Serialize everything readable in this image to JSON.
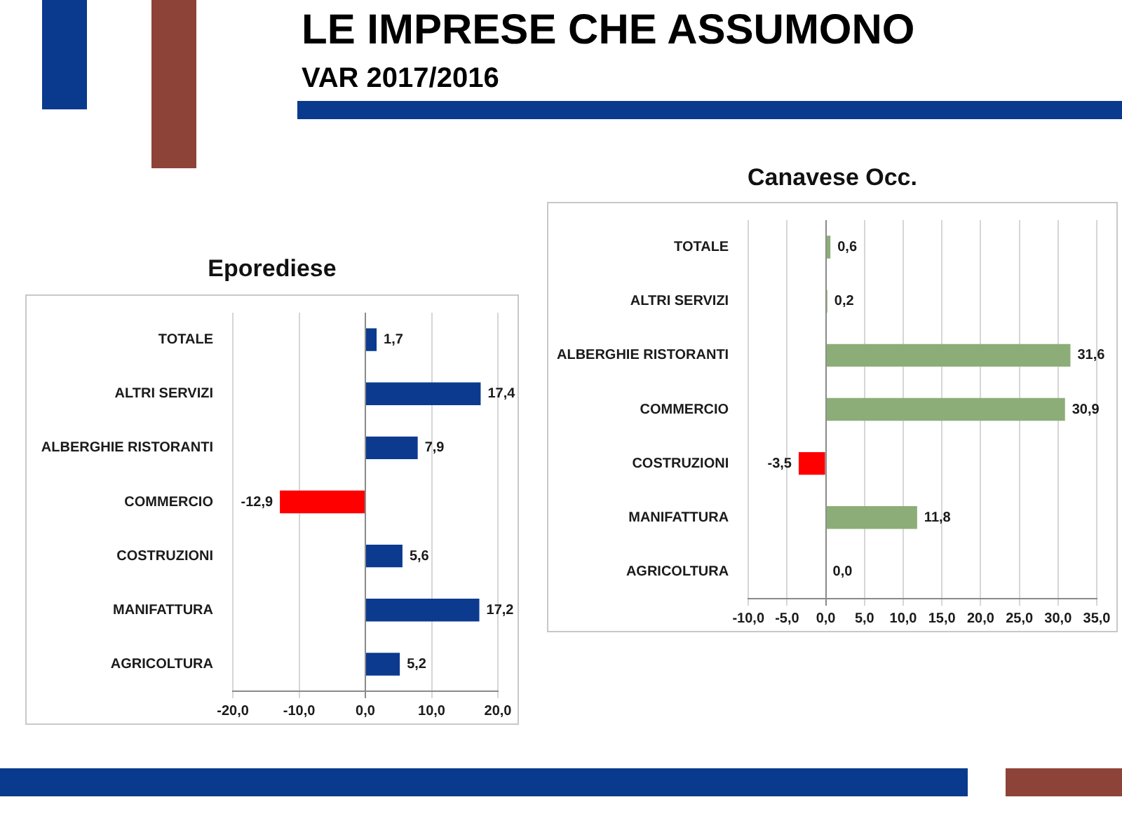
{
  "chart_data": [
    {
      "type": "other",
      "title": "LE IMPRESE CHE ASSUMONO",
      "subtitle": "VAR 2017/2016"
    },
    {
      "type": "bar",
      "title": "Eporediese",
      "orientation": "horizontal",
      "categories": [
        "TOTALE",
        "ALTRI SERVIZI",
        "ALBERGHIE RISTORANTI",
        "COMMERCIO",
        "COSTRUZIONI",
        "MANIFATTURA",
        "AGRICOLTURA"
      ],
      "values": [
        1.7,
        17.4,
        7.9,
        -12.9,
        5.6,
        17.2,
        5.2
      ],
      "colors": [
        "#0b3a8f",
        "#0b3a8f",
        "#0b3a8f",
        "#ff0000",
        "#0b3a8f",
        "#0b3a8f",
        "#0b3a8f"
      ],
      "value_labels": [
        "1,7",
        "17,4",
        "7,9",
        "-12,9",
        "5,6",
        "17,2",
        "5,2"
      ],
      "xlim": [
        -20,
        20
      ],
      "xticks": [
        {
          "value": -20,
          "label": "-20,0"
        },
        {
          "value": -10,
          "label": "-10,0"
        },
        {
          "value": 0,
          "label": "0,0"
        },
        {
          "value": 10,
          "label": "10,0"
        },
        {
          "value": 20,
          "label": "20,0"
        }
      ],
      "grid": "x"
    },
    {
      "type": "bar",
      "title": "Canavese Occ.",
      "orientation": "horizontal",
      "categories": [
        "TOTALE",
        "ALTRI SERVIZI",
        "ALBERGHIE RISTORANTI",
        "COMMERCIO",
        "COSTRUZIONI",
        "MANIFATTURA",
        "AGRICOLTURA"
      ],
      "values": [
        0.6,
        0.2,
        31.6,
        30.9,
        -3.5,
        11.8,
        0.0
      ],
      "colors": [
        "#8cad78",
        "#8cad78",
        "#8cad78",
        "#8cad78",
        "#ff0000",
        "#8cad78",
        "#8cad78"
      ],
      "value_labels": [
        "0,6",
        "0,2",
        "31,6",
        "30,9",
        "-3,5",
        "11,8",
        "0,0"
      ],
      "xlim": [
        -10,
        35
      ],
      "xticks": [
        {
          "value": -10,
          "label": "-10,0"
        },
        {
          "value": -5,
          "label": "-5,0"
        },
        {
          "value": 0,
          "label": "0,0"
        },
        {
          "value": 5,
          "label": "5,0"
        },
        {
          "value": 10,
          "label": "10,0"
        },
        {
          "value": 15,
          "label": "15,0"
        },
        {
          "value": 20,
          "label": "20,0"
        },
        {
          "value": 25,
          "label": "25,0"
        },
        {
          "value": 30,
          "label": "30,0"
        },
        {
          "value": 35,
          "label": "35,0"
        }
      ],
      "grid": "x"
    }
  ]
}
